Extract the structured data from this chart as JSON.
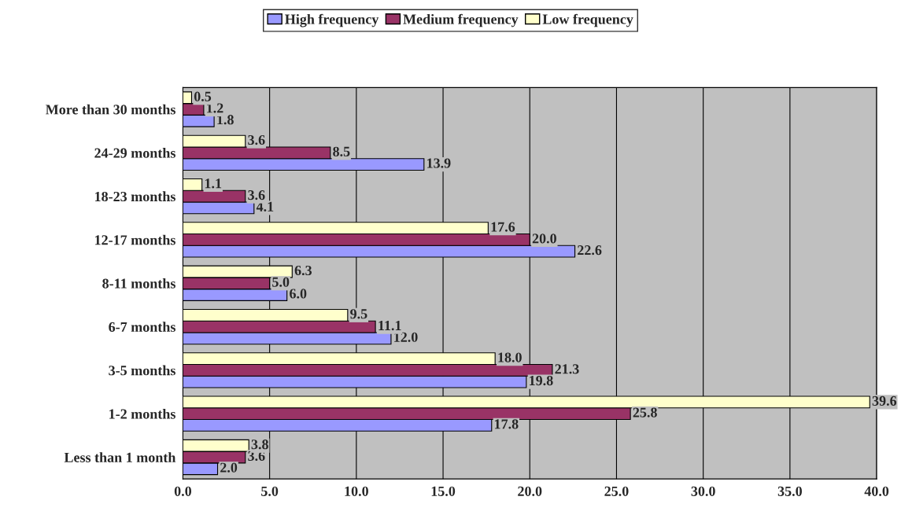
{
  "chart_data": {
    "type": "bar",
    "orientation": "horizontal",
    "categories": [
      "More than 30 months",
      "24-29 months",
      "18-23 months",
      "12-17 months",
      "8-11 months",
      "6-7 months",
      "3-5 months",
      "1-2 months",
      "Less than 1 month"
    ],
    "series": [
      {
        "name": "High frequency",
        "color": "#9999ff",
        "values": [
          1.8,
          13.9,
          4.1,
          22.6,
          6.0,
          12.0,
          19.8,
          17.8,
          2.0
        ],
        "value_labels": [
          "1.8",
          "13.9",
          "4.1",
          "22.6",
          "6.0",
          "12.0",
          "19.8",
          "17.8",
          "2.0"
        ]
      },
      {
        "name": "Medium frequency",
        "color": "#993366",
        "values": [
          1.2,
          8.5,
          3.6,
          20.0,
          5.0,
          11.1,
          21.3,
          25.8,
          3.6
        ],
        "value_labels": [
          "1.2",
          "8.5",
          "3.6",
          "20.0",
          "5.0",
          "11.1",
          "21.3",
          "25.8",
          "3.6"
        ]
      },
      {
        "name": "Low frequency",
        "color": "#ffffcc",
        "values": [
          0.5,
          3.6,
          1.1,
          17.6,
          6.3,
          9.5,
          18.0,
          39.6,
          3.8
        ],
        "value_labels": [
          "0.5",
          "3.6",
          "1.1",
          "17.6",
          "6.3",
          "9.5",
          "18.0",
          "39.6",
          "3.8"
        ]
      }
    ],
    "xlim": [
      0,
      40
    ],
    "xticks": [
      {
        "value": 0,
        "label": "0.0"
      },
      {
        "value": 5,
        "label": "5.0"
      },
      {
        "value": 10,
        "label": "10.0"
      },
      {
        "value": 15,
        "label": "15.0"
      },
      {
        "value": 20,
        "label": "20.0"
      },
      {
        "value": 25,
        "label": "25.0"
      },
      {
        "value": 30,
        "label": "30.0"
      },
      {
        "value": 35,
        "label": "35.0"
      },
      {
        "value": 40,
        "label": "40.0"
      }
    ],
    "grid": "x",
    "legend": "top"
  }
}
